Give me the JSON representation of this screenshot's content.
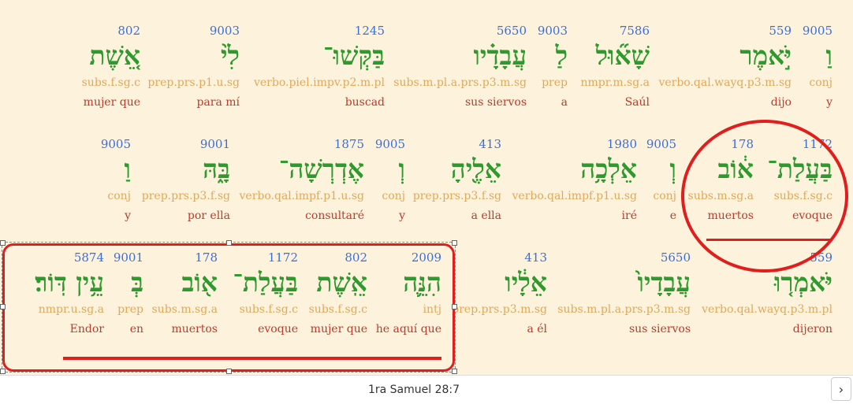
{
  "verse": {
    "reference": "1ra Samuel 28:7",
    "next_glyph": "›",
    "rows": [
      [
        {
          "strong": "9005",
          "hebrew": "וַ",
          "morph": "conj",
          "gloss": "y"
        },
        {
          "strong": "559",
          "hebrew": "יֹּ֣אמֶר",
          "morph": "verbo.qal.wayq.p3.m.sg",
          "gloss": "dijo"
        },
        {
          "strong": "7586",
          "hebrew": "שָׁא֞וּל",
          "morph": "nmpr.m.sg.a",
          "gloss": "Saúl"
        },
        {
          "strong": "9003",
          "hebrew": "לַ",
          "morph": "prep",
          "gloss": "a"
        },
        {
          "strong": "5650",
          "hebrew": "עֲבָדָ֗יו",
          "morph": "subs.m.pl.a.prs.p3.m.sg",
          "gloss": "sus siervos"
        },
        {
          "strong": "1245",
          "hebrew": "בַּקְּשׁוּ־",
          "morph": "verbo.piel.impv.p2.m.pl",
          "gloss": "buscad"
        },
        {
          "strong": "9003",
          "hebrew": "לִ֙י",
          "morph": "prep.prs.p1.u.sg",
          "gloss": "para mí"
        },
        {
          "strong": "802",
          "hebrew": "אֵ֚שֶׁת",
          "morph": "subs.f.sg.c",
          "gloss": "mujer que"
        }
      ],
      [
        {
          "strong": "1172",
          "hebrew": "בַּעֲלַת־",
          "morph": "subs.f.sg.c",
          "gloss": "evoque"
        },
        {
          "strong": "178",
          "hebrew": "א֔וֹב",
          "morph": "subs.m.sg.a",
          "gloss": "muertos"
        },
        {
          "strong": "9005",
          "hebrew": "וְ",
          "morph": "conj",
          "gloss": "e"
        },
        {
          "strong": "1980",
          "hebrew": "אֵלְכָ֥ה",
          "morph": "verbo.qal.impf.p1.u.sg",
          "gloss": "iré"
        },
        {
          "strong": "413",
          "hebrew": "אֵלֶ֖יהָ",
          "morph": "prep.prs.p3.f.sg",
          "gloss": "a ella"
        },
        {
          "strong": "9005",
          "hebrew": "וְ",
          "morph": "conj",
          "gloss": "y"
        },
        {
          "strong": "1875",
          "hebrew": "אֶדְרְשָׁה־",
          "morph": "verbo.qal.impf.p1.u.sg",
          "gloss": "consultaré"
        },
        {
          "strong": "9001",
          "hebrew": "בָּ֑הּ",
          "morph": "prep.prs.p3.f.sg",
          "gloss": "por ella"
        },
        {
          "strong": "9005",
          "hebrew": "וַ",
          "morph": "conj",
          "gloss": "y"
        }
      ],
      [
        {
          "strong": "559",
          "hebrew": "יֹּאמְר֤וּ",
          "morph": "verbo.qal.wayq.p3.m.pl",
          "gloss": "dijeron"
        },
        {
          "strong": "5650",
          "hebrew": "עֲבָדָיו֙",
          "morph": "subs.m.pl.a.prs.p3.m.sg",
          "gloss": "sus siervos"
        },
        {
          "strong": "413",
          "hebrew": "אֵלָ֔יו",
          "morph": "prep.prs.p3.m.sg",
          "gloss": "a él"
        },
        {
          "strong": "2009",
          "hebrew": "הִנֵּ֛ה",
          "morph": "intj",
          "gloss": "he aquí que"
        },
        {
          "strong": "802",
          "hebrew": "אֵֽשֶׁת",
          "morph": "subs.f.sg.c",
          "gloss": "mujer que"
        },
        {
          "strong": "1172",
          "hebrew": "בַּעֲלַת־",
          "morph": "subs.f.sg.c",
          "gloss": "evoque"
        },
        {
          "strong": "178",
          "hebrew": "א֖וֹב",
          "morph": "subs.m.sg.a",
          "gloss": "muertos"
        },
        {
          "strong": "9001",
          "hebrew": "בְּ",
          "morph": "prep",
          "gloss": "en"
        },
        {
          "strong": "5874",
          "hebrew": "עֵ֥ין דּֽוֹר׃",
          "morph": "nmpr.u.sg.a",
          "gloss": "Endor"
        }
      ]
    ]
  }
}
